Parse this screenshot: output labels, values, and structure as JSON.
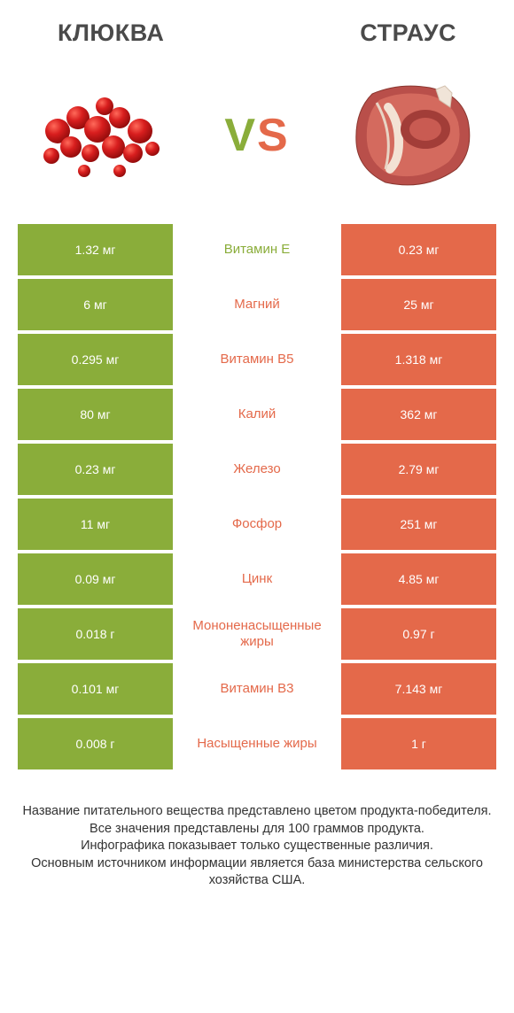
{
  "colors": {
    "green": "#8aad3a",
    "orange": "#e4694a",
    "text_dark": "#4a4a4a"
  },
  "header": {
    "left": "КЛЮКВА",
    "right": "СТРАУС"
  },
  "vs": {
    "v": "V",
    "s": "S"
  },
  "rows": [
    {
      "left": "1.32 мг",
      "mid": "Витамин E",
      "right": "0.23 мг",
      "winner": "left"
    },
    {
      "left": "6 мг",
      "mid": "Магний",
      "right": "25 мг",
      "winner": "right"
    },
    {
      "left": "0.295 мг",
      "mid": "Витамин B5",
      "right": "1.318 мг",
      "winner": "right"
    },
    {
      "left": "80 мг",
      "mid": "Калий",
      "right": "362 мг",
      "winner": "right"
    },
    {
      "left": "0.23 мг",
      "mid": "Железо",
      "right": "2.79 мг",
      "winner": "right"
    },
    {
      "left": "11 мг",
      "mid": "Фосфор",
      "right": "251 мг",
      "winner": "right"
    },
    {
      "left": "0.09 мг",
      "mid": "Цинк",
      "right": "4.85 мг",
      "winner": "right"
    },
    {
      "left": "0.018 г",
      "mid": "Мононенасыщенные жиры",
      "right": "0.97 г",
      "winner": "right"
    },
    {
      "left": "0.101 мг",
      "mid": "Витамин B3",
      "right": "7.143 мг",
      "winner": "right"
    },
    {
      "left": "0.008 г",
      "mid": "Насыщенные жиры",
      "right": "1 г",
      "winner": "right"
    }
  ],
  "footer": {
    "line1": "Название питательного вещества представлено цветом продукта-победителя.",
    "line2": "Все значения представлены для 100 граммов продукта.",
    "line3": "Инфографика показывает только существенные различия.",
    "line4": "Основным источником информации является база министерства сельского хозяйства США."
  }
}
